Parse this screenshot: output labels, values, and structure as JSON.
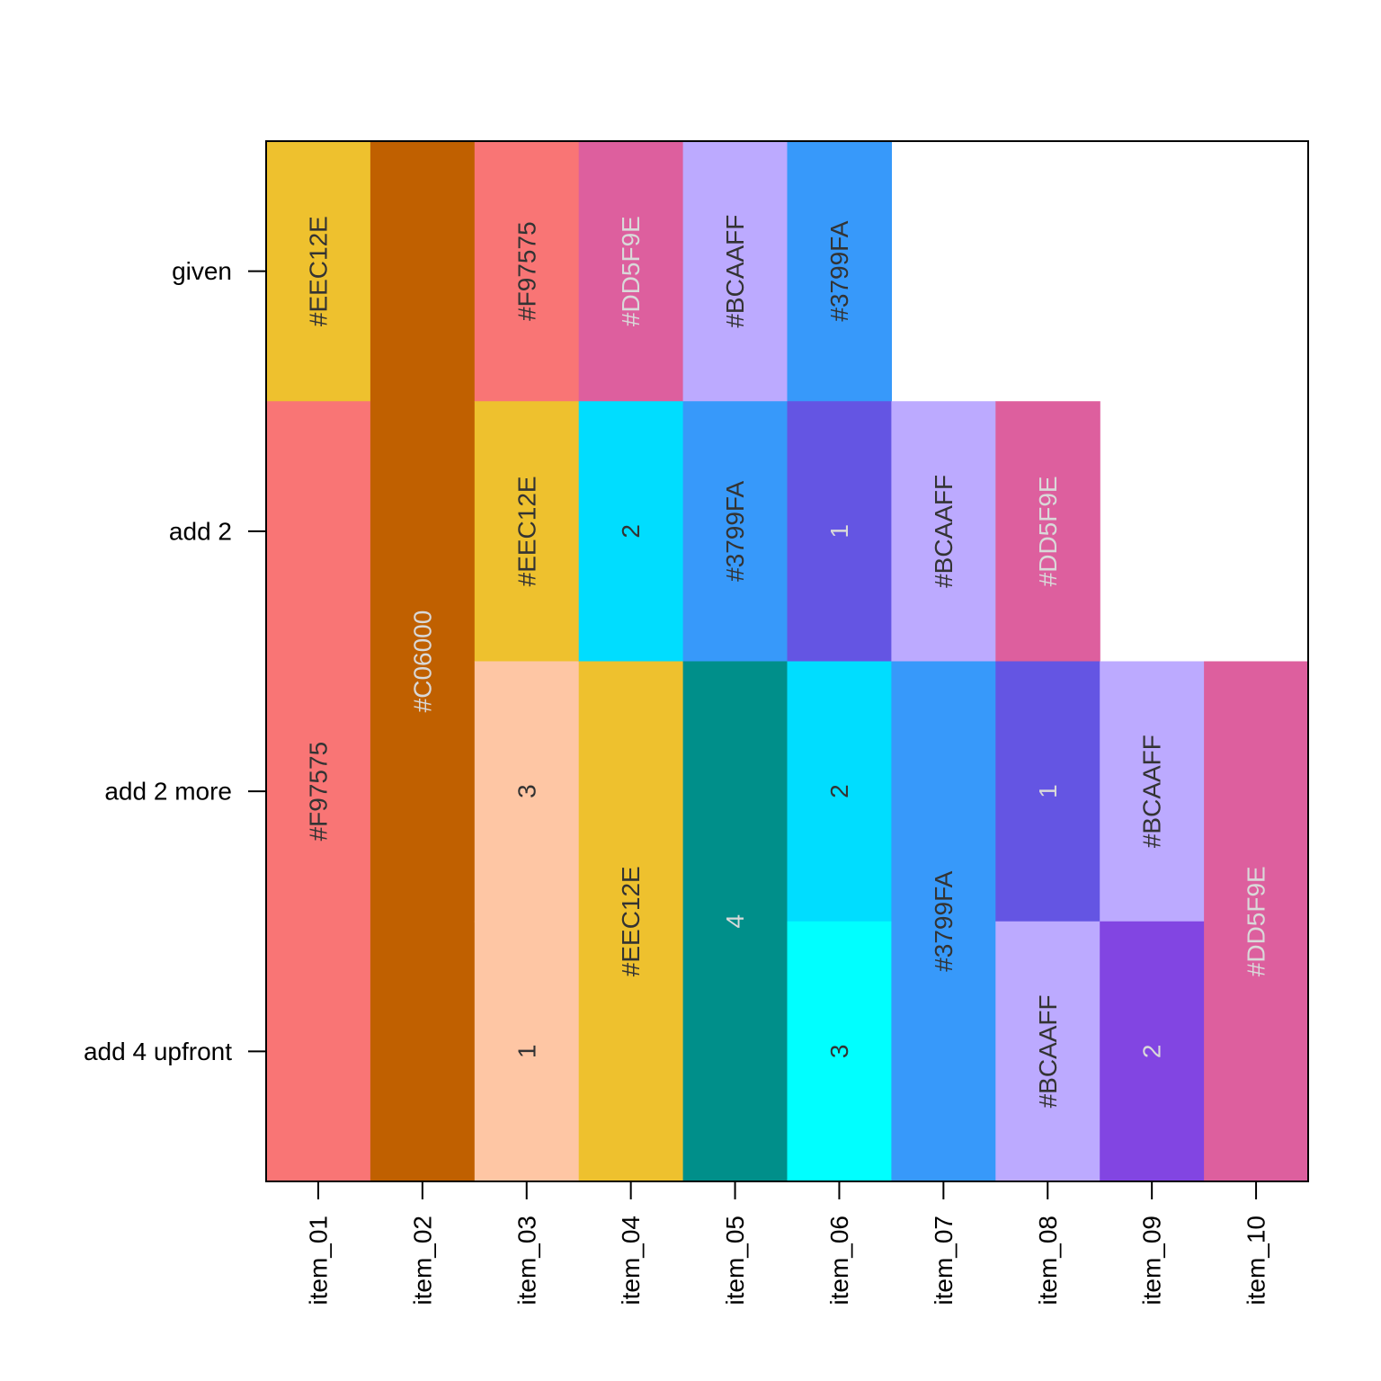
{
  "chart_data": {
    "type": "heatmap",
    "title": "",
    "xlabel": "",
    "ylabel": "",
    "categories": [
      "item_01",
      "item_02",
      "item_03",
      "item_04",
      "item_05",
      "item_06",
      "item_07",
      "item_08",
      "item_09",
      "item_10"
    ],
    "rows": [
      "given",
      "add 2",
      "add 2 more",
      "add 4 upfront"
    ],
    "cells": [
      {
        "x": "item_01",
        "rows": [
          "given"
        ],
        "fill": "#EEC12E",
        "label": "#EEC12E",
        "text_color": "#333333"
      },
      {
        "x": "item_01",
        "rows": [
          "add 2",
          "add 2 more",
          "add 4 upfront"
        ],
        "fill": "#F97575",
        "label": "#F97575",
        "text_color": "#333333"
      },
      {
        "x": "item_02",
        "rows": [
          "given",
          "add 2",
          "add 2 more",
          "add 4 upfront"
        ],
        "fill": "#C06000",
        "label": "#C06000",
        "text_color": "#D9D9D9"
      },
      {
        "x": "item_03",
        "rows": [
          "given"
        ],
        "fill": "#F97575",
        "label": "#F97575",
        "text_color": "#333333"
      },
      {
        "x": "item_03",
        "rows": [
          "add 2"
        ],
        "fill": "#EEC12E",
        "label": "#EEC12E",
        "text_color": "#333333"
      },
      {
        "x": "item_03",
        "rows": [
          "add 2 more"
        ],
        "fill": "#FEC6A4",
        "label": "3",
        "text_color": "#333333"
      },
      {
        "x": "item_03",
        "rows": [
          "add 4 upfront"
        ],
        "fill": "#FEC6A4",
        "label": "1",
        "text_color": "#333333"
      },
      {
        "x": "item_04",
        "rows": [
          "given"
        ],
        "fill": "#DD5F9E",
        "label": "#DD5F9E",
        "text_color": "#D9D9D9"
      },
      {
        "x": "item_04",
        "rows": [
          "add 2"
        ],
        "fill": "#00DDFF",
        "label": "2",
        "text_color": "#333333"
      },
      {
        "x": "item_04",
        "rows": [
          "add 2 more",
          "add 4 upfront"
        ],
        "fill": "#EEC12E",
        "label": "#EEC12E",
        "text_color": "#333333"
      },
      {
        "x": "item_05",
        "rows": [
          "given"
        ],
        "fill": "#BCAAFF",
        "label": "#BCAAFF",
        "text_color": "#333333"
      },
      {
        "x": "item_05",
        "rows": [
          "add 2"
        ],
        "fill": "#3799FA",
        "label": "#3799FA",
        "text_color": "#333333"
      },
      {
        "x": "item_05",
        "rows": [
          "add 2 more",
          "add 4 upfront"
        ],
        "fill": "#008F8A",
        "label": "4",
        "text_color": "#D9D9D9"
      },
      {
        "x": "item_06",
        "rows": [
          "given"
        ],
        "fill": "#3799FA",
        "label": "#3799FA",
        "text_color": "#333333"
      },
      {
        "x": "item_06",
        "rows": [
          "add 2"
        ],
        "fill": "#6455E3",
        "label": "1",
        "text_color": "#D9D9D9"
      },
      {
        "x": "item_06",
        "rows": [
          "add 2 more"
        ],
        "fill": "#00DDFF",
        "label": "2",
        "text_color": "#333333"
      },
      {
        "x": "item_06",
        "rows": [
          "add 4 upfront"
        ],
        "fill": "#00FFFF",
        "label": "3",
        "text_color": "#333333"
      },
      {
        "x": "item_07",
        "rows": [
          "add 2"
        ],
        "fill": "#BCAAFF",
        "label": "#BCAAFF",
        "text_color": "#333333"
      },
      {
        "x": "item_07",
        "rows": [
          "add 2 more",
          "add 4 upfront"
        ],
        "fill": "#3799FA",
        "label": "#3799FA",
        "text_color": "#333333"
      },
      {
        "x": "item_08",
        "rows": [
          "add 2"
        ],
        "fill": "#DD5F9E",
        "label": "#DD5F9E",
        "text_color": "#D9D9D9"
      },
      {
        "x": "item_08",
        "rows": [
          "add 2 more"
        ],
        "fill": "#6455E3",
        "label": "1",
        "text_color": "#D9D9D9"
      },
      {
        "x": "item_08",
        "rows": [
          "add 4 upfront"
        ],
        "fill": "#BCAAFF",
        "label": "#BCAAFF",
        "text_color": "#333333"
      },
      {
        "x": "item_09",
        "rows": [
          "add 2 more"
        ],
        "fill": "#BCAAFF",
        "label": "#BCAAFF",
        "text_color": "#333333"
      },
      {
        "x": "item_09",
        "rows": [
          "add 4 upfront"
        ],
        "fill": "#8245E2",
        "label": "2",
        "text_color": "#D9D9D9"
      },
      {
        "x": "item_10",
        "rows": [
          "add 2 more",
          "add 4 upfront"
        ],
        "fill": "#DD5F9E",
        "label": "#DD5F9E",
        "text_color": "#D9D9D9"
      }
    ],
    "grid": false,
    "legend": "none",
    "frame_color": "#000000"
  }
}
